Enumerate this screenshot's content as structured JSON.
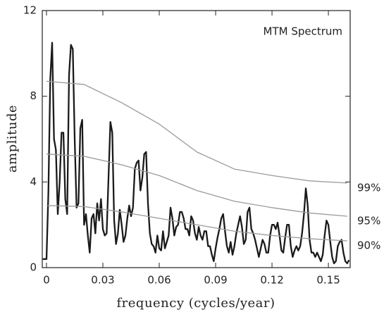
{
  "chart_data": {
    "type": "line",
    "x_label": "frequency (cycles/year)",
    "y_label": "amplitude",
    "xlim": [
      -0.00225,
      0.1616
    ],
    "ylim": [
      0,
      12
    ],
    "xticks": [
      0,
      0.03,
      0.06,
      0.09,
      0.12,
      0.15
    ],
    "yticks": [
      0,
      4,
      8,
      12
    ],
    "series": [
      {
        "name": "MTM Spectrum",
        "color": "#1a1a1a",
        "x": [
          -0.002,
          0,
          0.001,
          0.002,
          0.003,
          0.004,
          0.005,
          0.006,
          0.007,
          0.008,
          0.009,
          0.01,
          0.011,
          0.012,
          0.013,
          0.014,
          0.015,
          0.016,
          0.017,
          0.018,
          0.019,
          0.02,
          0.021,
          0.022,
          0.023,
          0.024,
          0.025,
          0.026,
          0.027,
          0.028,
          0.029,
          0.03,
          0.031,
          0.032,
          0.033,
          0.034,
          0.035,
          0.036,
          0.037,
          0.038,
          0.039,
          0.04,
          0.041,
          0.042,
          0.043,
          0.044,
          0.045,
          0.046,
          0.047,
          0.048,
          0.049,
          0.05,
          0.051,
          0.052,
          0.053,
          0.054,
          0.055,
          0.056,
          0.057,
          0.058,
          0.059,
          0.06,
          0.061,
          0.062,
          0.063,
          0.064,
          0.065,
          0.066,
          0.067,
          0.068,
          0.069,
          0.07,
          0.071,
          0.072,
          0.073,
          0.074,
          0.075,
          0.076,
          0.077,
          0.078,
          0.079,
          0.08,
          0.081,
          0.082,
          0.083,
          0.084,
          0.085,
          0.086,
          0.087,
          0.088,
          0.089,
          0.09,
          0.091,
          0.092,
          0.093,
          0.094,
          0.095,
          0.096,
          0.097,
          0.098,
          0.099,
          0.1,
          0.101,
          0.102,
          0.103,
          0.104,
          0.105,
          0.106,
          0.107,
          0.108,
          0.109,
          0.11,
          0.111,
          0.112,
          0.113,
          0.114,
          0.115,
          0.116,
          0.117,
          0.118,
          0.119,
          0.12,
          0.121,
          0.122,
          0.123,
          0.124,
          0.125,
          0.126,
          0.127,
          0.128,
          0.129,
          0.13,
          0.131,
          0.132,
          0.133,
          0.134,
          0.135,
          0.136,
          0.137,
          0.138,
          0.139,
          0.14,
          0.141,
          0.142,
          0.143,
          0.144,
          0.145,
          0.146,
          0.147,
          0.148,
          0.149,
          0.15,
          0.151,
          0.152,
          0.153,
          0.154,
          0.155,
          0.156,
          0.157,
          0.158,
          0.159,
          0.16,
          0.161
        ],
        "values": [
          0.4,
          0.4,
          3.5,
          8.8,
          10.5,
          6,
          5.5,
          2.5,
          4,
          6.3,
          6.3,
          3.2,
          2.5,
          9,
          10.4,
          10.2,
          6,
          2.8,
          3,
          6.5,
          6.9,
          2,
          2.5,
          1.5,
          0.7,
          2.3,
          2.5,
          1.6,
          3,
          2.2,
          3.2,
          1.8,
          1.5,
          1.6,
          4.2,
          6.8,
          6.3,
          2.2,
          1.1,
          1.6,
          2.7,
          2,
          1.2,
          1.5,
          2.3,
          2.9,
          2.4,
          2.8,
          4.6,
          4.9,
          5,
          3.6,
          4.2,
          5.3,
          5.4,
          3,
          1.6,
          1.1,
          1,
          0.7,
          1.5,
          0.9,
          0.8,
          1.7,
          0.9,
          1.2,
          1.5,
          2.8,
          2.3,
          1.5,
          1.9,
          2,
          2.6,
          2.6,
          2.3,
          1.8,
          1.8,
          1.5,
          2.4,
          2.2,
          1.6,
          1.3,
          1.9,
          1.5,
          1.3,
          1.7,
          1.7,
          1,
          1,
          0.6,
          0.3,
          0.9,
          1.4,
          1.8,
          2.3,
          2.5,
          1.7,
          1,
          0.7,
          1.2,
          0.6,
          1,
          1.6,
          2,
          2.4,
          1.9,
          1.1,
          1.3,
          2.6,
          2.8,
          1.8,
          1.6,
          1.3,
          0.9,
          0.5,
          0.9,
          1.3,
          1.1,
          0.7,
          0.7,
          1.5,
          2,
          2,
          1.8,
          2.1,
          1.5,
          0.8,
          0.7,
          1.4,
          2,
          2,
          1,
          0.5,
          0.8,
          1,
          0.8,
          1,
          1.6,
          2.5,
          3.7,
          2.9,
          1.3,
          0.7,
          0.7,
          0.5,
          0.7,
          0.5,
          0.3,
          0.6,
          1.5,
          2.2,
          2,
          1.2,
          0.5,
          0.2,
          0.3,
          1,
          1.2,
          1.3,
          0.7,
          0.3,
          0.2,
          0.35
        ]
      },
      {
        "name": "99%",
        "color": "#9a9a9a",
        "x": [
          0,
          0.02,
          0.04,
          0.06,
          0.08,
          0.1,
          0.12,
          0.14,
          0.16
        ],
        "values": [
          8.7,
          8.55,
          7.7,
          6.7,
          5.4,
          4.6,
          4.3,
          4.05,
          3.95
        ]
      },
      {
        "name": "95%",
        "color": "#9a9a9a",
        "x": [
          0,
          0.02,
          0.04,
          0.06,
          0.08,
          0.1,
          0.12,
          0.14,
          0.16
        ],
        "values": [
          5.3,
          5.2,
          4.8,
          4.3,
          3.6,
          3.1,
          2.8,
          2.55,
          2.4
        ]
      },
      {
        "name": "90%",
        "color": "#9a9a9a",
        "x": [
          0,
          0.02,
          0.04,
          0.06,
          0.08,
          0.1,
          0.12,
          0.14,
          0.16
        ],
        "values": [
          2.9,
          2.85,
          2.6,
          2.3,
          2,
          1.7,
          1.5,
          1.35,
          1.25
        ]
      }
    ]
  }
}
